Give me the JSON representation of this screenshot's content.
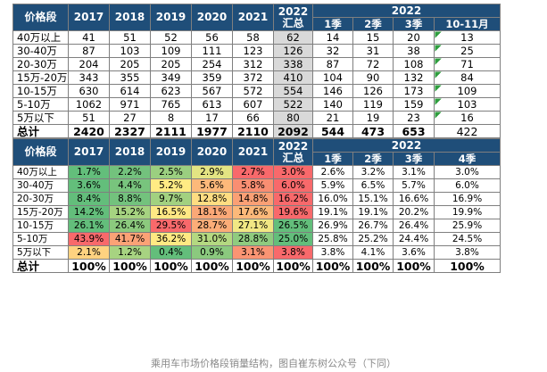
{
  "table1": {
    "header": {
      "label": "价格段",
      "years": [
        "2017",
        "2018",
        "2019",
        "2020",
        "2021"
      ],
      "summary_year": "2022",
      "summary_suffix": "汇总",
      "group_year": "2022",
      "quarters": [
        "1季",
        "2季",
        "3季",
        "10-11月"
      ]
    },
    "rows": [
      {
        "label": "40万以上",
        "v": [
          "41",
          "51",
          "52",
          "56",
          "58",
          "62",
          "14",
          "15",
          "20",
          "13"
        ]
      },
      {
        "label": "30-40万",
        "v": [
          "87",
          "103",
          "109",
          "111",
          "123",
          "126",
          "32",
          "31",
          "38",
          "25"
        ]
      },
      {
        "label": "20-30万",
        "v": [
          "204",
          "205",
          "205",
          "254",
          "312",
          "338",
          "87",
          "72",
          "108",
          "71"
        ]
      },
      {
        "label": "15万-20万",
        "v": [
          "343",
          "355",
          "349",
          "359",
          "372",
          "410",
          "104",
          "90",
          "132",
          "84"
        ]
      },
      {
        "label": "10-15万",
        "v": [
          "630",
          "614",
          "623",
          "567",
          "572",
          "554",
          "146",
          "126",
          "173",
          "109"
        ]
      },
      {
        "label": "5-10万",
        "v": [
          "1062",
          "971",
          "765",
          "613",
          "607",
          "522",
          "140",
          "119",
          "159",
          "103"
        ]
      },
      {
        "label": "5万以下",
        "v": [
          "51",
          "27",
          "8",
          "17",
          "66",
          "80",
          "21",
          "19",
          "23",
          "16"
        ]
      }
    ],
    "total": {
      "label": "总计",
      "v": [
        "2420",
        "2327",
        "2111",
        "1977",
        "2110",
        "2092",
        "544",
        "473",
        "653",
        "422"
      ]
    }
  },
  "table2": {
    "header": {
      "label": "价格段",
      "years": [
        "2017",
        "2018",
        "2019",
        "2020",
        "2021"
      ],
      "summary_year": "2022",
      "summary_suffix": "汇总",
      "group_year": "2022",
      "quarters": [
        "1季",
        "2季",
        "3季",
        "4季"
      ]
    },
    "rows": [
      {
        "label": "40万以上",
        "v": [
          "1.7%",
          "2.2%",
          "2.5%",
          "2.9%",
          "2.7%",
          "3.0%",
          "2.6%",
          "3.2%",
          "3.1%",
          "3.0%"
        ]
      },
      {
        "label": "30-40万",
        "v": [
          "3.6%",
          "4.4%",
          "5.2%",
          "5.6%",
          "5.8%",
          "6.0%",
          "5.9%",
          "6.5%",
          "5.7%",
          "6.0%"
        ]
      },
      {
        "label": "20-30万",
        "v": [
          "8.4%",
          "8.8%",
          "9.7%",
          "12.8%",
          "14.8%",
          "16.2%",
          "16.0%",
          "15.1%",
          "16.6%",
          "16.9%"
        ]
      },
      {
        "label": "15万-20万",
        "v": [
          "14.2%",
          "15.2%",
          "16.5%",
          "18.1%",
          "17.6%",
          "19.6%",
          "19.1%",
          "19.1%",
          "20.2%",
          "19.9%"
        ]
      },
      {
        "label": "10-15万",
        "v": [
          "26.1%",
          "26.4%",
          "29.5%",
          "28.7%",
          "27.1%",
          "26.5%",
          "26.9%",
          "26.7%",
          "26.4%",
          "25.9%"
        ]
      },
      {
        "label": "5-10万",
        "v": [
          "43.9%",
          "41.7%",
          "36.2%",
          "31.0%",
          "28.8%",
          "25.0%",
          "25.8%",
          "25.2%",
          "24.4%",
          "24.5%"
        ]
      },
      {
        "label": "5万以下",
        "v": [
          "2.1%",
          "1.2%",
          "0.4%",
          "0.9%",
          "3.1%",
          "3.8%",
          "3.8%",
          "4.1%",
          "3.6%",
          "3.8%"
        ]
      }
    ],
    "total": {
      "label": "总计",
      "v": [
        "100%",
        "100%",
        "100%",
        "100%",
        "100%",
        "100%",
        "100%",
        "100%",
        "100%",
        "100%"
      ]
    },
    "heat_colors": [
      [
        "#63be7b",
        "#73c27d",
        "#9bcf80",
        "#e3e483",
        "#f8696b",
        "#f8696b"
      ],
      [
        "#63be7b",
        "#78c47d",
        "#ffeb84",
        "#fdb97a",
        "#f98e72",
        "#f8696b"
      ],
      [
        "#63be7b",
        "#73c27d",
        "#a2d180",
        "#fedd82",
        "#faa075",
        "#f8696b"
      ],
      [
        "#63be7b",
        "#a6d381",
        "#ffe884",
        "#fba877",
        "#fcb97a",
        "#f8696b"
      ],
      [
        "#63be7b",
        "#8cca7e",
        "#f8696b",
        "#fcad78",
        "#f1e784",
        "#63be7b"
      ],
      [
        "#f8696b",
        "#fba276",
        "#fee983",
        "#b4d881",
        "#8fcb7f",
        "#63be7b"
      ],
      [
        "#fed280",
        "#a7d381",
        "#63be7b",
        "#8bc97e",
        "#fa9473",
        "#f8696b"
      ]
    ]
  },
  "caption": "乘用车市场价格段销量结构，图自崔东树公众号（下同）"
}
